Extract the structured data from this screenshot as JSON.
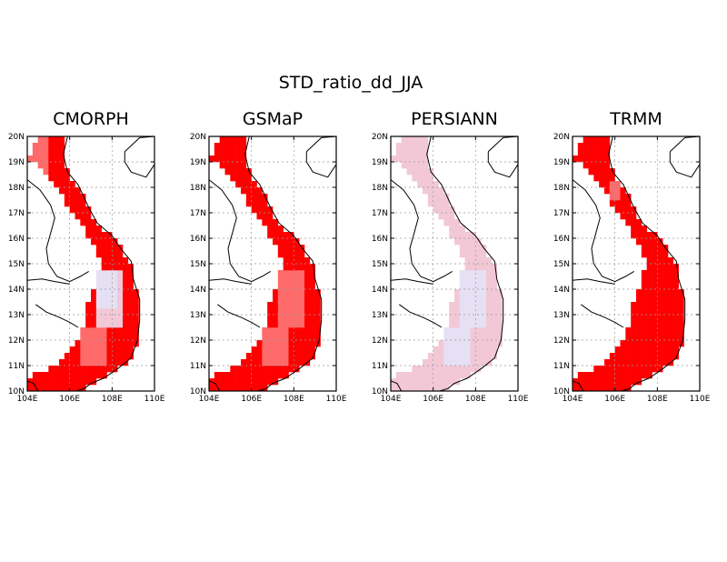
{
  "figure": {
    "title": "STD_ratio_dd_JJA"
  },
  "panels": [
    {
      "id": "cmorph",
      "title": "CMORPH",
      "dominant_color": "#ff1a1a"
    },
    {
      "id": "gsmap",
      "title": "GSMaP",
      "dominant_color": "#ff1a1a"
    },
    {
      "id": "persiann",
      "title": "PERSIANN",
      "dominant_color": "#e8c4d4"
    },
    {
      "id": "trmm",
      "title": "TRMM",
      "dominant_color": "#ff0000"
    }
  ],
  "axes": {
    "lon_ticks": [
      "104E",
      "106E",
      "108E",
      "110E"
    ],
    "lat_ticks": [
      "10N",
      "11N",
      "12N",
      "13N",
      "14N",
      "15N",
      "16N",
      "17N",
      "18N",
      "19N",
      "20N"
    ],
    "lon_range": [
      104,
      110
    ],
    "lat_range": [
      10,
      20
    ],
    "gridlines": "dotted"
  },
  "colors": {
    "high": "#ff0000",
    "medium": "#ff6a6a",
    "low": "#f2c8d6",
    "lowest": "#e6e0f4"
  }
}
